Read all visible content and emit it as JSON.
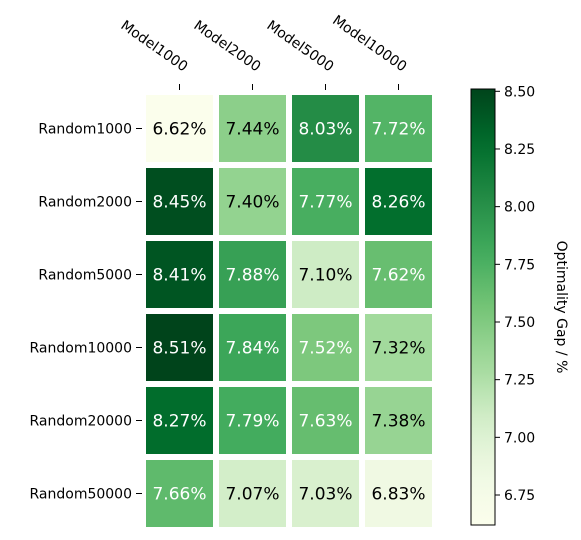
{
  "chart_data": {
    "type": "heatmap",
    "rows": [
      "Random1000",
      "Random2000",
      "Random5000",
      "Random10000",
      "Random20000",
      "Random50000"
    ],
    "columns": [
      "Model1000",
      "Model2000",
      "Model5000",
      "Model10000"
    ],
    "values": [
      [
        6.62,
        7.44,
        8.03,
        7.72
      ],
      [
        8.45,
        7.4,
        7.77,
        8.26
      ],
      [
        8.41,
        7.88,
        7.1,
        7.62
      ],
      [
        8.51,
        7.84,
        7.52,
        7.32
      ],
      [
        8.27,
        7.79,
        7.63,
        7.38
      ],
      [
        7.66,
        7.07,
        7.03,
        6.83
      ]
    ],
    "cell_labels": [
      [
        "6.62%",
        "7.44%",
        "8.03%",
        "7.72%"
      ],
      [
        "8.45%",
        "7.40%",
        "7.77%",
        "8.26%"
      ],
      [
        "8.41%",
        "7.88%",
        "7.10%",
        "7.62%"
      ],
      [
        "8.51%",
        "7.84%",
        "7.52%",
        "7.32%"
      ],
      [
        "8.27%",
        "7.79%",
        "7.63%",
        "7.38%"
      ],
      [
        "7.66%",
        "7.07%",
        "7.03%",
        "6.83%"
      ]
    ],
    "colormap": "Greens",
    "color_range": [
      6.62,
      8.51
    ],
    "colorbar": {
      "label": "Optimality Gap / %",
      "ticks": [
        6.75,
        7.0,
        7.25,
        7.5,
        7.75,
        8.0,
        8.25,
        8.5
      ],
      "tick_labels": [
        "6.75",
        "7.00",
        "7.25",
        "7.50",
        "7.75",
        "8.00",
        "8.25",
        "8.50"
      ]
    },
    "column_labels_position": "top",
    "grid": false
  }
}
